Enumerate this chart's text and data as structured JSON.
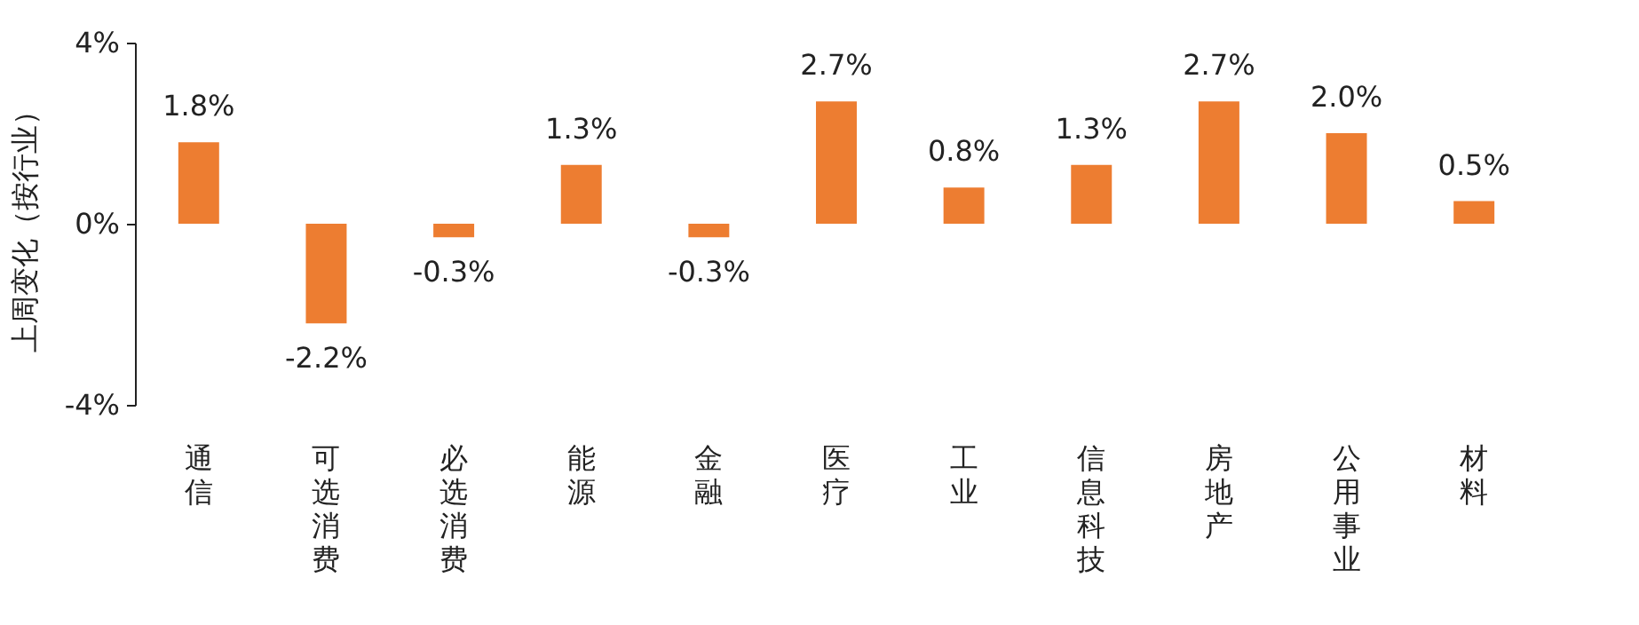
{
  "chart_data": {
    "type": "bar",
    "ylabel": "上周变化（按行业）",
    "categories": [
      "通信",
      "可选消费",
      "必选消费",
      "能源",
      "金融",
      "医疗",
      "工业",
      "信息科技",
      "房地产",
      "公用事业",
      "材料"
    ],
    "values": [
      1.8,
      -2.2,
      -0.3,
      1.3,
      -0.3,
      2.7,
      0.8,
      1.3,
      2.7,
      2.0,
      0.5
    ],
    "value_labels": [
      "1.8%",
      "-2.2%",
      "-0.3%",
      "1.3%",
      "-0.3%",
      "2.7%",
      "0.8%",
      "1.3%",
      "2.7%",
      "2.0%",
      "0.5%"
    ],
    "color": "#ed7d31",
    "ylim": [
      -4,
      4
    ],
    "yticks": [
      {
        "value": -4,
        "label": "-4%"
      },
      {
        "value": 0,
        "label": "0%"
      },
      {
        "value": 4,
        "label": "4%"
      }
    ],
    "grid": false
  }
}
